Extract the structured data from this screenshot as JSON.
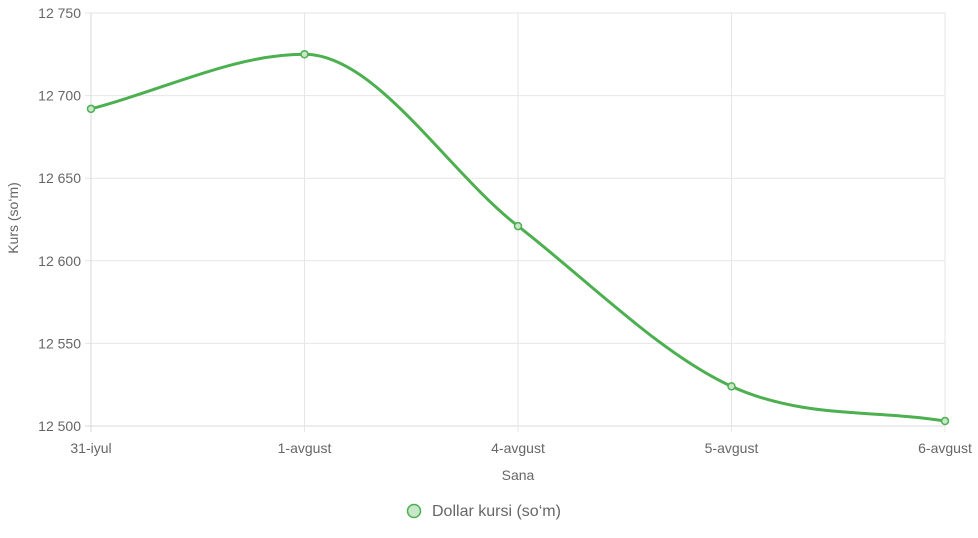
{
  "colors": {
    "line": "#4caf50",
    "point_fill": "#c8e6c9",
    "grid": "#e6e6e6",
    "text": "#666666"
  },
  "chart_data": {
    "type": "line",
    "x": [
      "31-iyul",
      "1-avgust",
      "4-avgust",
      "5-avgust",
      "6-avgust"
    ],
    "series": [
      {
        "name": "Dollar kursi (so‘m)",
        "values": [
          12692,
          12725,
          12621,
          12524,
          12503
        ]
      }
    ],
    "xlabel": "Sana",
    "ylabel": "Kurs (so‘m)",
    "ylim": [
      12500,
      12750
    ],
    "yticks": [
      12500,
      12550,
      12600,
      12650,
      12700,
      12750
    ],
    "ytick_labels": [
      "12 500",
      "12 550",
      "12 600",
      "12 650",
      "12 700",
      "12 750"
    ],
    "grid": true,
    "legend_position": "bottom"
  }
}
